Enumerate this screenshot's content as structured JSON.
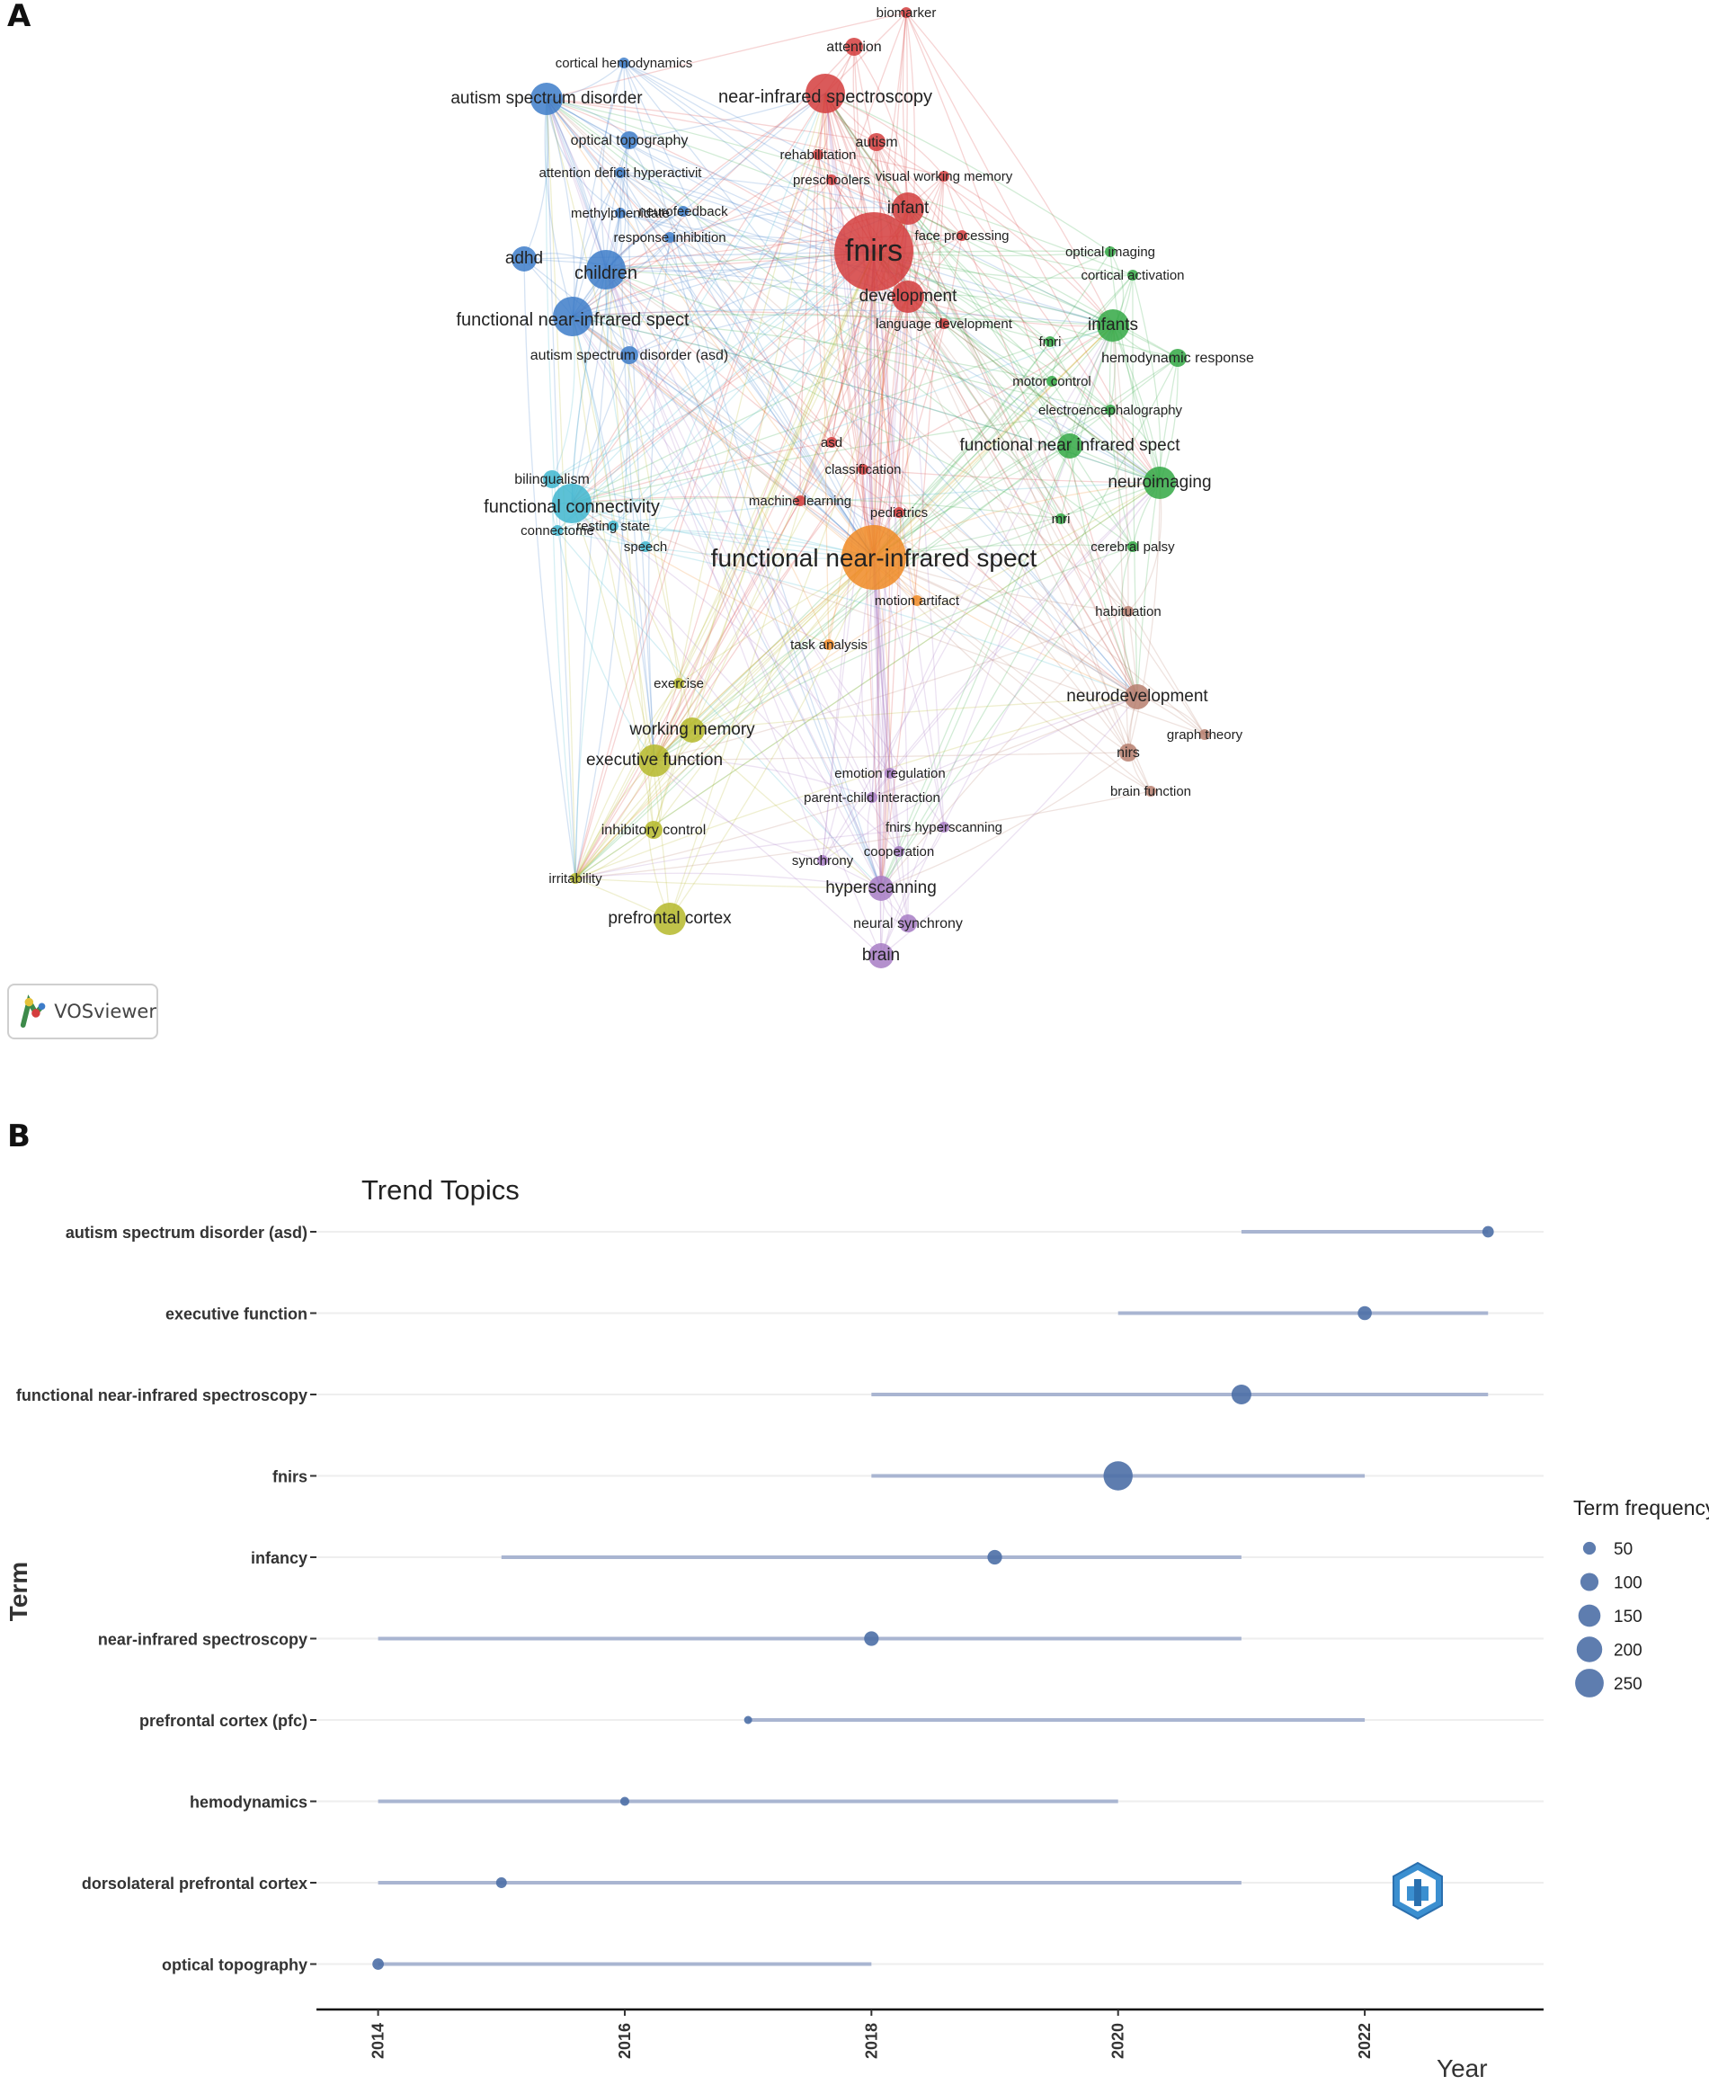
{
  "panel_a_label": "A",
  "panel_b_label": "B",
  "vosviewer_label": "VOSviewer",
  "colors": {
    "red": "#d43d3d",
    "blue": "#3d7cc9",
    "green": "#33a844",
    "cyan": "#3fb6cf",
    "orange": "#f08a24",
    "yellow": "#b5b82a",
    "purple": "#a77cc4",
    "brown": "#b77f6f",
    "trend_point": "#4d6fa6",
    "trend_line": "#a9b5d1"
  },
  "network": {
    "nodes": [
      {
        "label": "fnirs",
        "cluster": "red",
        "weight": 10
      },
      {
        "label": "biomarker",
        "cluster": "red",
        "weight": 1
      },
      {
        "label": "attention",
        "cluster": "red",
        "weight": 2
      },
      {
        "label": "near-infrared spectroscopy",
        "cluster": "red",
        "weight": 5
      },
      {
        "label": "autism",
        "cluster": "red",
        "weight": 2
      },
      {
        "label": "rehabilitation",
        "cluster": "red",
        "weight": 1
      },
      {
        "label": "preschoolers",
        "cluster": "red",
        "weight": 1
      },
      {
        "label": "visual working memory",
        "cluster": "red",
        "weight": 1
      },
      {
        "label": "infant",
        "cluster": "red",
        "weight": 4
      },
      {
        "label": "face processing",
        "cluster": "red",
        "weight": 1
      },
      {
        "label": "development",
        "cluster": "red",
        "weight": 4
      },
      {
        "label": "language development",
        "cluster": "red",
        "weight": 1
      },
      {
        "label": "asd",
        "cluster": "red",
        "weight": 1
      },
      {
        "label": "classification",
        "cluster": "red",
        "weight": 1
      },
      {
        "label": "machine learning",
        "cluster": "red",
        "weight": 1
      },
      {
        "label": "pediatrics",
        "cluster": "red",
        "weight": 1
      },
      {
        "label": "cortical hemodynamics",
        "cluster": "blue",
        "weight": 1
      },
      {
        "label": "autism spectrum disorder",
        "cluster": "blue",
        "weight": 4
      },
      {
        "label": "optical topography",
        "cluster": "blue",
        "weight": 2
      },
      {
        "label": "attention deficit hyperactivit",
        "cluster": "blue",
        "weight": 1
      },
      {
        "label": "methylphenidate",
        "cluster": "blue",
        "weight": 1
      },
      {
        "label": "neurofeedback",
        "cluster": "blue",
        "weight": 1
      },
      {
        "label": "response inhibition",
        "cluster": "blue",
        "weight": 1
      },
      {
        "label": "adhd",
        "cluster": "blue",
        "weight": 3
      },
      {
        "label": "children",
        "cluster": "blue",
        "weight": 5
      },
      {
        "label": "functional near-infrared spect",
        "cluster": "blue",
        "weight": 5
      },
      {
        "label": "autism spectrum disorder (asd)",
        "cluster": "blue",
        "weight": 2
      },
      {
        "label": "optical imaging",
        "cluster": "green",
        "weight": 1
      },
      {
        "label": "cortical activation",
        "cluster": "green",
        "weight": 1
      },
      {
        "label": "infants",
        "cluster": "green",
        "weight": 4
      },
      {
        "label": "fmri",
        "cluster": "green",
        "weight": 1
      },
      {
        "label": "hemodynamic response",
        "cluster": "green",
        "weight": 2
      },
      {
        "label": "motor control",
        "cluster": "green",
        "weight": 1
      },
      {
        "label": "electroencephalography",
        "cluster": "green",
        "weight": 1
      },
      {
        "label": "functional near infrared spect",
        "cluster": "green",
        "weight": 3
      },
      {
        "label": "neuroimaging",
        "cluster": "green",
        "weight": 4
      },
      {
        "label": "mri",
        "cluster": "green",
        "weight": 1
      },
      {
        "label": "cerebral palsy",
        "cluster": "green",
        "weight": 1
      },
      {
        "label": "bilingualism",
        "cluster": "cyan",
        "weight": 2
      },
      {
        "label": "functional connectivity",
        "cluster": "cyan",
        "weight": 5
      },
      {
        "label": "connectome",
        "cluster": "cyan",
        "weight": 1
      },
      {
        "label": "resting state",
        "cluster": "cyan",
        "weight": 1
      },
      {
        "label": "speech",
        "cluster": "cyan",
        "weight": 1
      },
      {
        "label": "functional near-infrared spect",
        "cluster": "orange",
        "weight": 9
      },
      {
        "label": "motion artifact",
        "cluster": "orange",
        "weight": 1
      },
      {
        "label": "task analysis",
        "cluster": "orange",
        "weight": 1
      },
      {
        "label": "habituation",
        "cluster": "brown",
        "weight": 1
      },
      {
        "label": "neurodevelopment",
        "cluster": "brown",
        "weight": 3
      },
      {
        "label": "graph theory",
        "cluster": "brown",
        "weight": 1
      },
      {
        "label": "nirs",
        "cluster": "brown",
        "weight": 2
      },
      {
        "label": "brain function",
        "cluster": "brown",
        "weight": 1
      },
      {
        "label": "exercise",
        "cluster": "yellow",
        "weight": 1
      },
      {
        "label": "working memory",
        "cluster": "yellow",
        "weight": 3
      },
      {
        "label": "executive function",
        "cluster": "yellow",
        "weight": 4
      },
      {
        "label": "inhibitory control",
        "cluster": "yellow",
        "weight": 2
      },
      {
        "label": "irritability",
        "cluster": "yellow",
        "weight": 1
      },
      {
        "label": "prefrontal cortex",
        "cluster": "yellow",
        "weight": 4
      },
      {
        "label": "emotion regulation",
        "cluster": "purple",
        "weight": 1
      },
      {
        "label": "parent-child interaction",
        "cluster": "purple",
        "weight": 1
      },
      {
        "label": "fnirs hyperscanning",
        "cluster": "purple",
        "weight": 1
      },
      {
        "label": "cooperation",
        "cluster": "purple",
        "weight": 1
      },
      {
        "label": "synchrony",
        "cluster": "purple",
        "weight": 1
      },
      {
        "label": "hyperscanning",
        "cluster": "purple",
        "weight": 3
      },
      {
        "label": "neural synchrony",
        "cluster": "purple",
        "weight": 2
      },
      {
        "label": "brain",
        "cluster": "purple",
        "weight": 3
      }
    ]
  },
  "chart_data": {
    "type": "scatter",
    "title": "Trend Topics",
    "xlabel": "Year",
    "ylabel": "Term",
    "xlim": [
      2013.5,
      2023.45
    ],
    "x_ticks": [
      2014,
      2016,
      2018,
      2020,
      2022
    ],
    "legend_title": "Term frequency",
    "legend_sizes": [
      50,
      100,
      150,
      200,
      250
    ],
    "legend_position": "right",
    "terms": [
      {
        "term": "autism spectrum disorder (asd)",
        "start": 2021,
        "end": 2023,
        "median": 2023,
        "freq": 40
      },
      {
        "term": "executive function",
        "start": 2020,
        "end": 2023,
        "median": 2022,
        "freq": 60
      },
      {
        "term": "functional near-infrared spectroscopy",
        "start": 2018,
        "end": 2023,
        "median": 2021,
        "freq": 120
      },
      {
        "term": "fnirs",
        "start": 2018,
        "end": 2022,
        "median": 2020,
        "freq": 260
      },
      {
        "term": "infancy",
        "start": 2015,
        "end": 2021,
        "median": 2019,
        "freq": 65
      },
      {
        "term": "near-infrared spectroscopy",
        "start": 2014,
        "end": 2021,
        "median": 2018,
        "freq": 65
      },
      {
        "term": "prefrontal cortex (pfc)",
        "start": 2017,
        "end": 2022,
        "median": 2017,
        "freq": 20
      },
      {
        "term": "hemodynamics",
        "start": 2014,
        "end": 2020,
        "median": 2016,
        "freq": 25
      },
      {
        "term": "dorsolateral prefrontal cortex",
        "start": 2014,
        "end": 2021,
        "median": 2015,
        "freq": 35
      },
      {
        "term": "optical topography",
        "start": 2014,
        "end": 2018,
        "median": 2014,
        "freq": 40
      }
    ]
  }
}
